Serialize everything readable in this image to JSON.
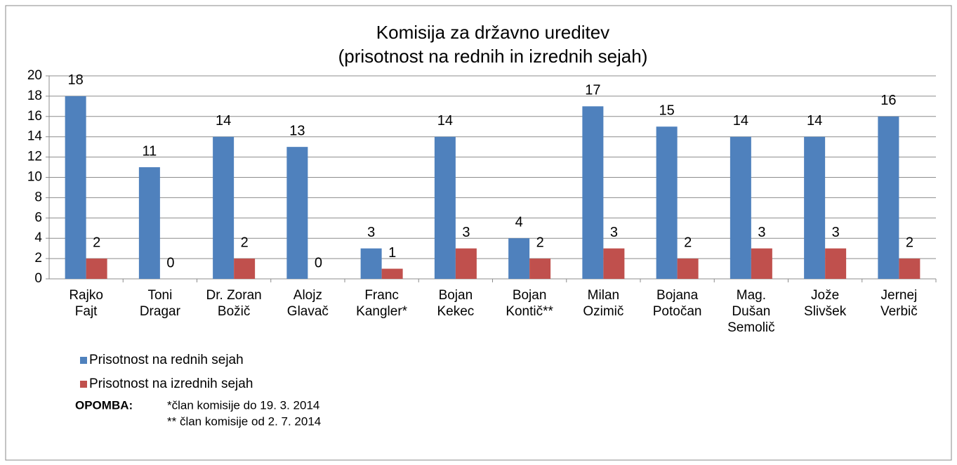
{
  "chart_data": {
    "type": "bar",
    "title": [
      "Komisija za državno ureditev",
      "(prisotnost na rednih in izrednih sejah)"
    ],
    "categories": [
      "Rajko\nFajt",
      "Toni\nDragar",
      "Dr. Zoran\nBožič",
      "Alojz\nGlavač",
      "Franc\nKangler*",
      "Bojan\nKekec",
      "Bojan\nKontič**",
      "Milan\nOzimič",
      "Bojana\nPotočan",
      "Mag.\nDušan\nSemolič",
      "Jože\nSlivšek",
      "Jernej\nVerbič"
    ],
    "series": [
      {
        "name": "Prisotnost na rednih sejah",
        "color": "#4f81bd",
        "values": [
          18,
          11,
          14,
          13,
          3,
          14,
          4,
          17,
          15,
          14,
          14,
          16
        ]
      },
      {
        "name": "Prisotnost na izrednih sejah",
        "color": "#c0504d",
        "values": [
          2,
          0,
          2,
          0,
          1,
          3,
          2,
          3,
          2,
          3,
          3,
          2
        ]
      }
    ],
    "ylim": [
      0,
      20
    ],
    "yticks": [
      0,
      2,
      4,
      6,
      8,
      10,
      12,
      14,
      16,
      18,
      20
    ],
    "grid": true,
    "legend": "bottom-left",
    "annotations": [
      "OPOMBA:",
      "*član komisije do 19. 3. 2014",
      "** član komisije od 2. 7. 2014"
    ]
  }
}
